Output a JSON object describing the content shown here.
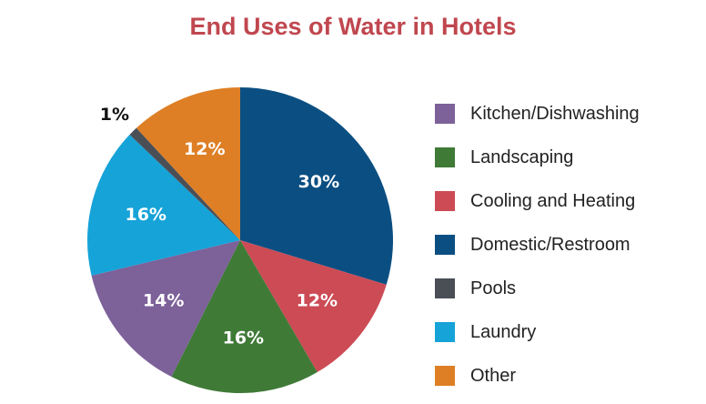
{
  "chart_data": {
    "type": "pie",
    "title": "End Uses of Water in Hotels",
    "slices": [
      {
        "name": "Domestic/Restroom",
        "value": 30,
        "label": "30%",
        "color": "#0b4f82"
      },
      {
        "name": "Cooling and Heating",
        "value": 12,
        "label": "12%",
        "color": "#cc4b55"
      },
      {
        "name": "Landscaping",
        "value": 16,
        "label": "16%",
        "color": "#3f7a37"
      },
      {
        "name": "Kitchen/Dishwashing",
        "value": 14,
        "label": "14%",
        "color": "#7d6199"
      },
      {
        "name": "Laundry",
        "value": 16,
        "label": "16%",
        "color": "#16a3d8"
      },
      {
        "name": "Pools",
        "value": 1,
        "label": "1%",
        "color": "#4a4f56"
      },
      {
        "name": "Other",
        "value": 12,
        "label": "12%",
        "color": "#de7f25"
      }
    ],
    "legend": {
      "placement": "right",
      "items": [
        {
          "label": "Kitchen/Dishwashing",
          "color": "#7d6199"
        },
        {
          "label": "Landscaping",
          "color": "#3f7a37"
        },
        {
          "label": "Cooling and Heating",
          "color": "#cc4b55"
        },
        {
          "label": "Domestic/Restroom",
          "color": "#0b4f82"
        },
        {
          "label": "Pools",
          "color": "#4a4f56"
        },
        {
          "label": "Laundry",
          "color": "#16a3d8"
        },
        {
          "label": "Other",
          "color": "#de7f25"
        }
      ]
    }
  }
}
